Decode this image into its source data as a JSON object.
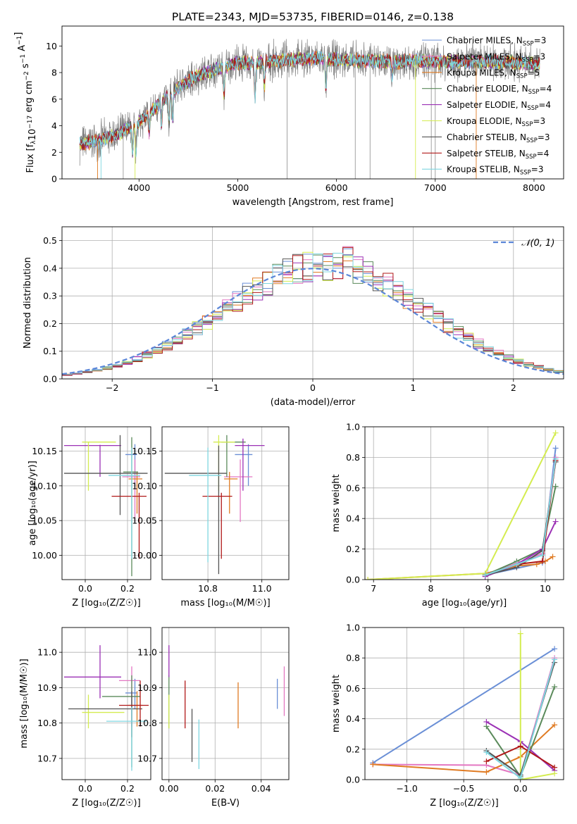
{
  "title": "PLATE=2343, MJD=53735, FIBERID=0146, z=0.138",
  "colors": {
    "chabrier_miles": "#6a8fd6",
    "salpeter_miles": "#e377c2",
    "kroupa_miles": "#e07b23",
    "chabrier_elodie": "#5a8a5a",
    "salpeter_elodie": "#9b30b5",
    "kroupa_elodie": "#d4ec50",
    "chabrier_stelib": "#555555",
    "salpeter_stelib": "#b01818",
    "kroupa_stelib": "#7fd6e0",
    "normal": "#5b86d8",
    "grid": "#b0b0b0"
  },
  "legend_spectrum": {
    "items": [
      {
        "prefix": "Chabrier MILES, N",
        "sub": "SSP",
        "suffix": "=3"
      },
      {
        "prefix": "Salpeter MILES, N",
        "sub": "SSP",
        "suffix": "=3"
      },
      {
        "prefix": "Kroupa MILES, N",
        "sub": "SSP",
        "suffix": "=5"
      },
      {
        "prefix": "Chabrier ELODIE, N",
        "sub": "SSP",
        "suffix": "=4"
      },
      {
        "prefix": "Salpeter ELODIE, N",
        "sub": "SSP",
        "suffix": "=4"
      },
      {
        "prefix": "Kroupa ELODIE, N",
        "sub": "SSP",
        "suffix": "=3"
      },
      {
        "prefix": "Chabrier STELIB, N",
        "sub": "SSP",
        "suffix": "=3"
      },
      {
        "prefix": "Salpeter STELIB, N",
        "sub": "SSP",
        "suffix": "=4"
      },
      {
        "prefix": "Kroupa STELIB, N",
        "sub": "SSP",
        "suffix": "=3"
      }
    ]
  },
  "legend_hist": {
    "label": "𝒩(0, 1)"
  },
  "chart_data": [
    {
      "id": "spectrum",
      "type": "line",
      "title": "PLATE=2343, MJD=53735, FIBERID=0146, z=0.138",
      "xlabel": "wavelength [Angstrom, rest frame]",
      "ylabel_parts": {
        "a": "Flux [f",
        "b": "λ",
        "c": "10",
        "d": "−17",
        "e": " erg cm",
        "f": "−2",
        "g": " s",
        "h": "−1",
        "i": " A",
        "j": "−1",
        "k": "]"
      },
      "xlim": [
        3220,
        8300
      ],
      "ylim": [
        0,
        11.5
      ],
      "xticks": [
        4000,
        5000,
        6000,
        7000,
        8000
      ],
      "yticks": [
        0,
        2,
        4,
        6,
        8,
        10
      ],
      "grid": false,
      "legend_position": "right",
      "data_range": [
        3400,
        8060
      ],
      "continuum": {
        "x": [
          3400,
          3600,
          3800,
          4000,
          4200,
          4400,
          4600,
          4800,
          5000,
          5200,
          5400,
          5600,
          5800,
          6000,
          6200,
          6400,
          6600,
          6800,
          7000,
          7200,
          7400,
          7600,
          7800,
          8060
        ],
        "y": [
          2.6,
          2.9,
          3.4,
          4.3,
          5.6,
          6.9,
          7.8,
          8.3,
          8.7,
          8.7,
          8.9,
          9.0,
          9.1,
          9.0,
          8.9,
          8.9,
          8.8,
          8.9,
          8.8,
          8.8,
          8.8,
          8.8,
          8.8,
          8.6
        ]
      }
    },
    {
      "id": "residuals",
      "type": "histogram",
      "xlabel": "(data-model)/error",
      "ylabel": "Normed distribution",
      "xlim": [
        -2.5,
        2.5
      ],
      "ylim": [
        0,
        0.55
      ],
      "xticks": [
        -2,
        -1,
        0,
        1,
        2
      ],
      "yticks": [
        0.0,
        0.1,
        0.2,
        0.3,
        0.4,
        0.5
      ],
      "grid": true,
      "legend_position": "top-right",
      "bin_width": 0.1,
      "reference": {
        "name": "𝒩(0, 1)",
        "mean": 0,
        "sigma": 1
      }
    },
    {
      "id": "age_vs_Z",
      "type": "errorbar",
      "xlabel": "Z [log₁₀(Z/Z☉)]",
      "ylabel": "age  [log₁₀(age/yr)]",
      "xlim": [
        -0.11,
        0.31
      ],
      "ylim": [
        9.965,
        10.185
      ],
      "xticks": [
        0.0,
        0.2
      ],
      "yticks": [
        10.0,
        10.05,
        10.1,
        10.15
      ],
      "grid": true,
      "points": [
        {
          "model": "chabrier_miles",
          "x": 0.235,
          "xerr": [
            0.045,
            0.01
          ],
          "y": 10.145,
          "yerr": [
            0.045,
            0.015
          ]
        },
        {
          "model": "salpeter_miles",
          "x": 0.235,
          "xerr": [
            0.06,
            0.025
          ],
          "y": 10.113,
          "yerr": [
            0.065,
            0.025
          ]
        },
        {
          "model": "kroupa_miles",
          "x": 0.245,
          "xerr": [
            0.04,
            0.025
          ],
          "y": 10.11,
          "yerr": [
            0.05,
            0.01
          ]
        },
        {
          "model": "chabrier_elodie",
          "x": 0.22,
          "xerr": [
            0.04,
            0.03
          ],
          "y": 10.12,
          "yerr": [
            0.15,
            0.05
          ]
        },
        {
          "model": "salpeter_elodie",
          "x": 0.07,
          "xerr": [
            0.17,
            0.1
          ],
          "y": 10.158,
          "yerr": [
            0.045,
            0.001
          ]
        },
        {
          "model": "kroupa_elodie",
          "x": 0.015,
          "xerr": [
            0.03,
            0.13
          ],
          "y": 10.163,
          "yerr": [
            0.07,
            0.0
          ]
        },
        {
          "model": "chabrier_stelib",
          "x": 0.165,
          "xerr": [
            0.265,
            0.13
          ],
          "y": 10.118,
          "yerr": [
            0.06,
            0.055
          ]
        },
        {
          "model": "salpeter_stelib",
          "x": 0.255,
          "xerr": [
            0.13,
            0.035
          ],
          "y": 10.085,
          "yerr": [
            0.09,
            0.005
          ]
        },
        {
          "model": "kroupa_stelib",
          "x": 0.22,
          "xerr": [
            0.11,
            0.04
          ],
          "y": 10.115,
          "yerr": [
            0.12,
            0.04
          ]
        }
      ]
    },
    {
      "id": "age_vs_mass",
      "type": "errorbar",
      "xlabel": "mass [log₁₀(M/M☉)]",
      "ylabel": "",
      "xlim": [
        10.63,
        11.1
      ],
      "ylim": [
        9.965,
        10.185
      ],
      "xticks": [
        10.8,
        11.0
      ],
      "yticks": [
        10.0,
        10.05,
        10.1,
        10.15
      ],
      "grid": true,
      "points": [
        {
          "model": "chabrier_miles",
          "x": 10.95,
          "xerr": [
            0.05,
            0.015
          ],
          "y": 10.145,
          "yerr": [
            0.045,
            0.015
          ]
        },
        {
          "model": "salpeter_miles",
          "x": 10.92,
          "xerr": [
            0.06,
            0.045
          ],
          "y": 10.113,
          "yerr": [
            0.065,
            0.025
          ]
        },
        {
          "model": "kroupa_miles",
          "x": 10.88,
          "xerr": [
            0.02,
            0.03
          ],
          "y": 10.11,
          "yerr": [
            0.05,
            0.01
          ]
        },
        {
          "model": "chabrier_elodie",
          "x": 10.87,
          "xerr": [
            0.02,
            0.07
          ],
          "y": 10.163,
          "yerr": [
            0.05,
            0.01
          ]
        },
        {
          "model": "salpeter_elodie",
          "x": 10.93,
          "xerr": [
            0.03,
            0.08
          ],
          "y": 10.158,
          "yerr": [
            0.065,
            0.01
          ]
        },
        {
          "model": "kroupa_elodie",
          "x": 10.84,
          "xerr": [
            0.02,
            0.06
          ],
          "y": 10.163,
          "yerr": [
            0.07,
            0.01
          ]
        },
        {
          "model": "chabrier_stelib",
          "x": 10.84,
          "xerr": [
            0.2,
            0.03
          ],
          "y": 10.118,
          "yerr": [
            0.145,
            0.04
          ]
        },
        {
          "model": "salpeter_stelib",
          "x": 10.85,
          "xerr": [
            0.07,
            0.04
          ],
          "y": 10.085,
          "yerr": [
            0.09,
            0.005
          ]
        },
        {
          "model": "kroupa_stelib",
          "x": 10.8,
          "xerr": [
            0.07,
            0.05
          ],
          "y": 10.115,
          "yerr": [
            0.125,
            0.04
          ]
        }
      ]
    },
    {
      "id": "mass_weight_vs_age",
      "type": "line",
      "xlabel": "age  [log₁₀(age/yr)]",
      "ylabel": "mass weight",
      "xlim": [
        6.85,
        10.32
      ],
      "ylim": [
        0,
        1.0
      ],
      "xticks": [
        7,
        8,
        9,
        10
      ],
      "yticks": [
        0.0,
        0.2,
        0.4,
        0.6,
        0.8,
        1.0
      ],
      "grid": true,
      "series": [
        {
          "model": "chabrier_miles",
          "x": [
            8.95,
            9.95,
            10.18
          ],
          "y": [
            0.03,
            0.11,
            0.86
          ]
        },
        {
          "model": "salpeter_miles",
          "x": [
            8.95,
            9.95,
            10.18
          ],
          "y": [
            0.03,
            0.17,
            0.8
          ]
        },
        {
          "model": "kroupa_miles",
          "x": [
            6.9,
            8.95,
            9.5,
            9.85,
            10.0,
            10.13
          ],
          "y": [
            0.0,
            0.04,
            0.09,
            0.1,
            0.12,
            0.15
          ]
        },
        {
          "model": "chabrier_elodie",
          "x": [
            8.95,
            9.5,
            9.95,
            10.18
          ],
          "y": [
            0.03,
            0.12,
            0.2,
            0.61
          ]
        },
        {
          "model": "salpeter_elodie",
          "x": [
            8.95,
            9.5,
            9.95,
            10.18
          ],
          "y": [
            0.02,
            0.1,
            0.2,
            0.38
          ]
        },
        {
          "model": "kroupa_elodie",
          "x": [
            6.9,
            8.95,
            10.18
          ],
          "y": [
            0.0,
            0.04,
            0.96
          ]
        },
        {
          "model": "chabrier_stelib",
          "x": [
            8.95,
            9.5,
            9.95,
            10.18
          ],
          "y": [
            0.03,
            0.08,
            0.19,
            0.77
          ]
        },
        {
          "model": "salpeter_stelib",
          "x": [
            8.95,
            9.5,
            9.95,
            10.18
          ],
          "y": [
            0.03,
            0.1,
            0.12,
            0.78
          ]
        },
        {
          "model": "kroupa_stelib",
          "x": [
            8.95,
            9.5,
            9.95,
            10.18
          ],
          "y": [
            0.03,
            0.1,
            0.16,
            0.79
          ]
        }
      ]
    },
    {
      "id": "mass_vs_Z",
      "type": "errorbar",
      "xlabel": "Z [log₁₀(Z/Z☉)]",
      "ylabel": "mass [log₁₀(M/M☉)]",
      "xlim": [
        -0.11,
        0.31
      ],
      "ylim": [
        10.64,
        11.07
      ],
      "xticks": [
        0.0,
        0.2
      ],
      "yticks": [
        10.7,
        10.8,
        10.9,
        11.0
      ],
      "grid": true,
      "points": [
        {
          "model": "chabrier_miles",
          "x": 0.235,
          "xerr": [
            0.045,
            0.01
          ],
          "y": 10.885,
          "yerr": [
            0.045,
            0.04
          ]
        },
        {
          "model": "salpeter_miles",
          "x": 0.22,
          "xerr": [
            0.06,
            0.04
          ],
          "y": 10.92,
          "yerr": [
            0.13,
            0.04
          ]
        },
        {
          "model": "kroupa_miles",
          "x": 0.245,
          "xerr": [
            0.04,
            0.025
          ],
          "y": 10.85,
          "yerr": [
            0.06,
            0.04
          ]
        },
        {
          "model": "chabrier_elodie",
          "x": 0.22,
          "xerr": [
            0.14,
            0.04
          ],
          "y": 10.875,
          "yerr": [
            0.2,
            0.06
          ]
        },
        {
          "model": "salpeter_elodie",
          "x": 0.07,
          "xerr": [
            0.17,
            0.1
          ],
          "y": 10.93,
          "yerr": [
            0.06,
            0.09
          ]
        },
        {
          "model": "kroupa_elodie",
          "x": 0.015,
          "xerr": [
            0.03,
            0.17
          ],
          "y": 10.83,
          "yerr": [
            0.045,
            0.05
          ]
        },
        {
          "model": "chabrier_stelib",
          "x": 0.22,
          "xerr": [
            0.3,
            0.05
          ],
          "y": 10.84,
          "yerr": [
            0.08,
            0.05
          ]
        },
        {
          "model": "salpeter_stelib",
          "x": 0.26,
          "xerr": [
            0.1,
            0.04
          ],
          "y": 10.85,
          "yerr": [
            0.06,
            0.07
          ]
        },
        {
          "model": "kroupa_stelib",
          "x": 0.22,
          "xerr": [
            0.12,
            0.07
          ],
          "y": 10.805,
          "yerr": [
            0.14,
            0.04
          ]
        }
      ]
    },
    {
      "id": "mass_vs_ebv",
      "type": "errorbar",
      "xlabel": "E(B-V)",
      "ylabel": "",
      "xlim": [
        -0.003,
        0.052
      ],
      "ylim": [
        10.64,
        11.07
      ],
      "xticks": [
        0.0,
        0.02,
        0.04
      ],
      "yticks": [
        10.7,
        10.8,
        10.9,
        11.0
      ],
      "grid": true,
      "points": [
        {
          "model": "chabrier_miles",
          "x": 0.047,
          "xerr": [
            0,
            0
          ],
          "y": 10.885,
          "yerr": [
            0.045,
            0.04
          ]
        },
        {
          "model": "salpeter_miles",
          "x": 0.05,
          "xerr": [
            0,
            0
          ],
          "y": 10.92,
          "yerr": [
            0.1,
            0.04
          ]
        },
        {
          "model": "kroupa_miles",
          "x": 0.03,
          "xerr": [
            0,
            0
          ],
          "y": 10.85,
          "yerr": [
            0.065,
            0.065
          ]
        },
        {
          "model": "chabrier_elodie",
          "x": 0.0,
          "xerr": [
            0,
            0
          ],
          "y": 10.875,
          "yerr": [
            0.09,
            0.06
          ]
        },
        {
          "model": "salpeter_elodie",
          "x": 0.0,
          "xerr": [
            0,
            0
          ],
          "y": 10.96,
          "yerr": [
            0.03,
            0.06
          ]
        },
        {
          "model": "kroupa_elodie",
          "x": 0.0,
          "xerr": [
            0,
            0
          ],
          "y": 10.83,
          "yerr": [
            0.045,
            0.05
          ]
        },
        {
          "model": "chabrier_stelib",
          "x": 0.01,
          "xerr": [
            0,
            0
          ],
          "y": 10.78,
          "yerr": [
            0.09,
            0.06
          ]
        },
        {
          "model": "salpeter_stelib",
          "x": 0.007,
          "xerr": [
            0,
            0
          ],
          "y": 10.85,
          "yerr": [
            0.065,
            0.07
          ]
        },
        {
          "model": "kroupa_stelib",
          "x": 0.013,
          "xerr": [
            0,
            0
          ],
          "y": 10.74,
          "yerr": [
            0.07,
            0.07
          ]
        }
      ]
    },
    {
      "id": "mass_weight_vs_Z",
      "type": "line",
      "xlabel": "Z [log₁₀(Z/Z☉)]",
      "ylabel": "mass weight",
      "xlim": [
        -1.37,
        0.38
      ],
      "ylim": [
        0,
        1.0
      ],
      "xticks": [
        -1.0,
        -0.5,
        0.0
      ],
      "yticks": [
        0.0,
        0.2,
        0.4,
        0.6,
        0.8,
        1.0
      ],
      "grid": true,
      "series": [
        {
          "model": "chabrier_miles",
          "x": [
            -1.3,
            0.3
          ],
          "y": [
            0.11,
            0.86
          ]
        },
        {
          "model": "salpeter_miles",
          "x": [
            -1.3,
            -0.3,
            0.0,
            0.3
          ],
          "y": [
            0.1,
            0.095,
            0.03,
            0.8
          ]
        },
        {
          "model": "kroupa_miles",
          "x": [
            -1.3,
            -0.3,
            0.0,
            0.3
          ],
          "y": [
            0.1,
            0.05,
            0.15,
            0.36
          ]
        },
        {
          "model": "chabrier_elodie",
          "x": [
            -0.3,
            0.0,
            0.3
          ],
          "y": [
            0.35,
            0.02,
            0.61
          ]
        },
        {
          "model": "salpeter_elodie",
          "x": [
            -0.3,
            0.0,
            0.3
          ],
          "y": [
            0.38,
            0.25,
            0.06
          ]
        },
        {
          "model": "kroupa_elodie",
          "x": [
            0.0,
            0.0,
            0.3
          ],
          "y": [
            0.96,
            0.0,
            0.04
          ]
        },
        {
          "model": "chabrier_stelib",
          "x": [
            -0.3,
            0.0,
            0.3
          ],
          "y": [
            0.19,
            0.03,
            0.77
          ]
        },
        {
          "model": "salpeter_stelib",
          "x": [
            -0.3,
            0.0,
            0.3
          ],
          "y": [
            0.12,
            0.22,
            0.08
          ]
        },
        {
          "model": "kroupa_stelib",
          "x": [
            -0.3,
            0.0,
            0.3
          ],
          "y": [
            0.18,
            0.01,
            0.79
          ]
        }
      ]
    }
  ]
}
